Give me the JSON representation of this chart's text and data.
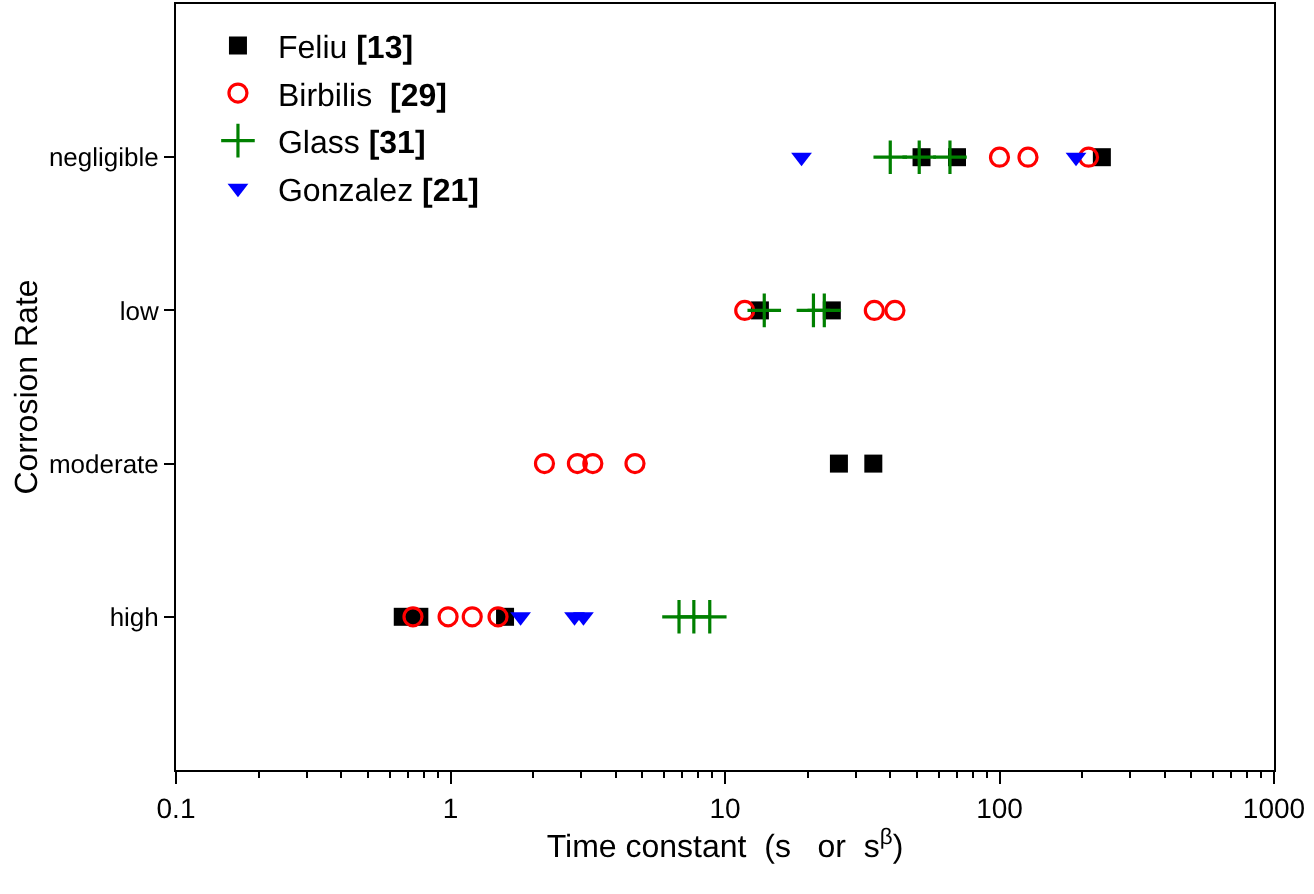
{
  "chart_data": {
    "type": "scatter",
    "orientation": "horizontal",
    "xlabel": "Time constant  (s   or  s$^{β}$)",
    "ylabel": "Corrosion Rate",
    "categories": [
      "negligible",
      "low",
      "moderate",
      "high"
    ],
    "log": "x",
    "xlim": [
      0.1,
      1000
    ],
    "xticks": [
      0.1,
      1,
      10,
      100,
      1000
    ],
    "grid": false,
    "legend": "top left",
    "series": [
      {
        "name": "Feliu [13]",
        "color": "#000000",
        "marker": "square",
        "x": [
          "negligible",
          "negligible",
          "negligible",
          "low",
          "low",
          "moderate",
          "moderate",
          "high",
          "high",
          "high"
        ],
        "values": [
          52,
          70,
          236,
          13.4,
          24.5,
          26,
          34.7,
          0.67,
          0.77,
          1.58
        ]
      },
      {
        "name": "Birbilis  [29]",
        "color": "#ff0000",
        "marker": "circle-open",
        "x": [
          "negligible",
          "negligible",
          "negligible",
          "low",
          "low",
          "low",
          "moderate",
          "moderate",
          "moderate",
          "moderate",
          "high",
          "high",
          "high",
          "high"
        ],
        "values": [
          100,
          127,
          211,
          11.8,
          35,
          41.6,
          2.2,
          2.9,
          3.3,
          4.7,
          0.73,
          0.98,
          1.2,
          1.49
        ]
      },
      {
        "name": "Glass [31]",
        "color": "#008000",
        "marker": "cross",
        "x": [
          "negligible",
          "negligible",
          "negligible",
          "low",
          "low",
          "low",
          "high",
          "high",
          "high"
        ],
        "values": [
          40,
          51,
          66,
          13.9,
          21,
          23,
          6.8,
          7.7,
          8.8
        ]
      },
      {
        "name": "Gonzalez [21]",
        "color": "#0000ff",
        "marker": "triangle-down",
        "x": [
          "negligible",
          "negligible",
          "high",
          "high",
          "high"
        ],
        "values": [
          19,
          190,
          1.8,
          2.83,
          3.05
        ]
      }
    ]
  }
}
